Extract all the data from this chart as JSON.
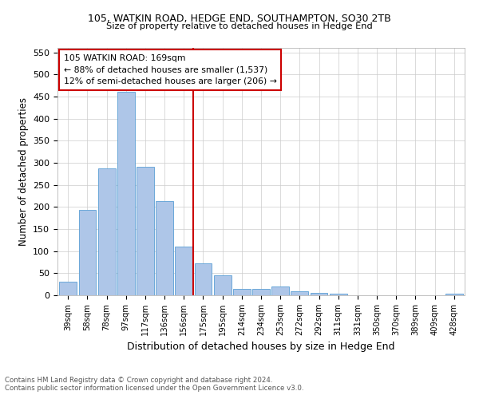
{
  "title1": "105, WATKIN ROAD, HEDGE END, SOUTHAMPTON, SO30 2TB",
  "title2": "Size of property relative to detached houses in Hedge End",
  "xlabel": "Distribution of detached houses by size in Hedge End",
  "ylabel": "Number of detached properties",
  "categories": [
    "39sqm",
    "58sqm",
    "78sqm",
    "97sqm",
    "117sqm",
    "136sqm",
    "156sqm",
    "175sqm",
    "195sqm",
    "214sqm",
    "234sqm",
    "253sqm",
    "272sqm",
    "292sqm",
    "311sqm",
    "331sqm",
    "350sqm",
    "370sqm",
    "389sqm",
    "409sqm",
    "428sqm"
  ],
  "values": [
    30,
    193,
    288,
    460,
    291,
    213,
    110,
    73,
    46,
    14,
    14,
    20,
    9,
    5,
    4,
    0,
    0,
    0,
    0,
    0,
    4
  ],
  "bar_color": "#aec6e8",
  "bar_edge_color": "#5a9fd4",
  "vline_x": 6.5,
  "vline_color": "#cc0000",
  "annotation_text": "105 WATKIN ROAD: 169sqm\n← 88% of detached houses are smaller (1,537)\n12% of semi-detached houses are larger (206) →",
  "annotation_box_color": "#ffffff",
  "annotation_box_edge": "#cc0000",
  "ylim": [
    0,
    560
  ],
  "yticks": [
    0,
    50,
    100,
    150,
    200,
    250,
    300,
    350,
    400,
    450,
    500,
    550
  ],
  "footnote1": "Contains HM Land Registry data © Crown copyright and database right 2024.",
  "footnote2": "Contains public sector information licensed under the Open Government Licence v3.0.",
  "bg_color": "#ffffff",
  "grid_color": "#cccccc"
}
